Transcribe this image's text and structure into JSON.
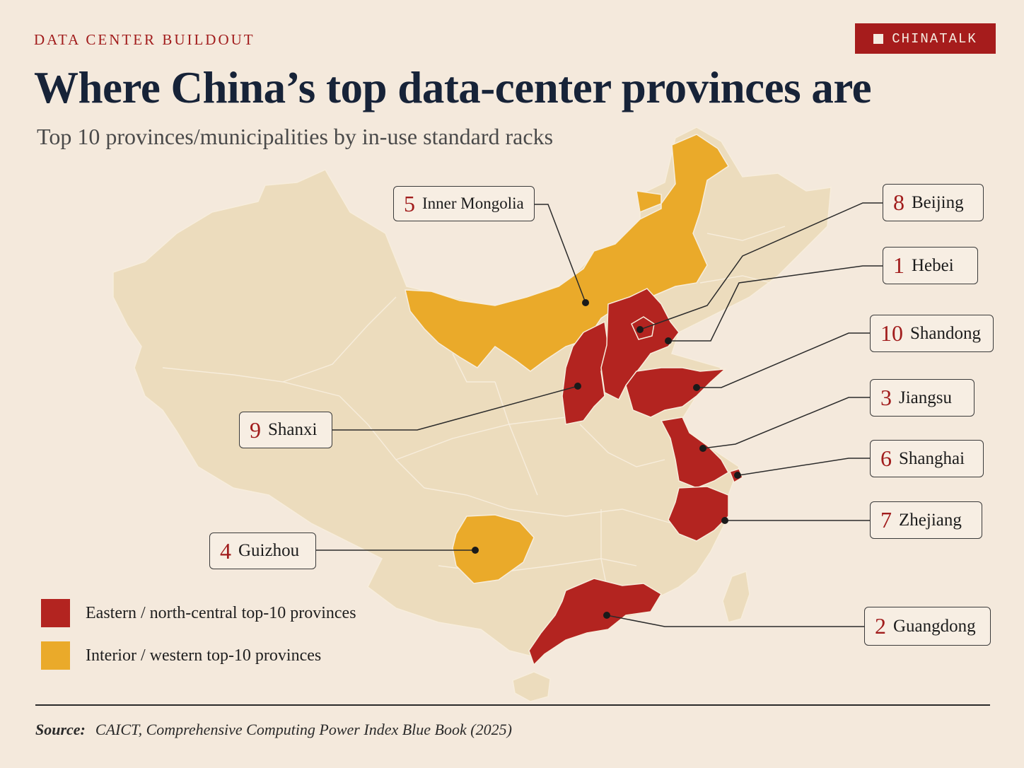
{
  "header": {
    "kicker": "DATA CENTER BUILDOUT",
    "brand": "CHINATALK",
    "title": "Where China’s top data-center provinces are",
    "subtitle": "Top 10 provinces/municipalities by in-use standard racks"
  },
  "colors": {
    "background": "#f4e9dc",
    "base_land": "#ecdcbd",
    "eastern": "#b32420",
    "interior": "#eaaa2a",
    "accent": "#a11c1c"
  },
  "callouts": [
    {
      "id": "inner-mongolia",
      "rank": "5",
      "name": "Inner Mongolia",
      "group": "interior"
    },
    {
      "id": "beijing",
      "rank": "8",
      "name": "Beijing",
      "group": "eastern"
    },
    {
      "id": "hebei",
      "rank": "1",
      "name": "Hebei",
      "group": "eastern"
    },
    {
      "id": "shandong",
      "rank": "10",
      "name": "Shandong",
      "group": "eastern"
    },
    {
      "id": "jiangsu",
      "rank": "3",
      "name": "Jiangsu",
      "group": "eastern"
    },
    {
      "id": "shanghai",
      "rank": "6",
      "name": "Shanghai",
      "group": "eastern"
    },
    {
      "id": "zhejiang",
      "rank": "7",
      "name": "Zhejiang",
      "group": "eastern"
    },
    {
      "id": "shanxi",
      "rank": "9",
      "name": "Shanxi",
      "group": "eastern"
    },
    {
      "id": "guizhou",
      "rank": "4",
      "name": "Guizhou",
      "group": "interior"
    },
    {
      "id": "guangdong",
      "rank": "2",
      "name": "Guangdong",
      "group": "eastern"
    }
  ],
  "legend": {
    "eastern": "Eastern / north-central top-10 provinces",
    "interior": "Interior / western top-10 provinces"
  },
  "source": {
    "label": "Source:",
    "text": "CAICT, Comprehensive Computing Power Index Blue Book (2025)"
  }
}
